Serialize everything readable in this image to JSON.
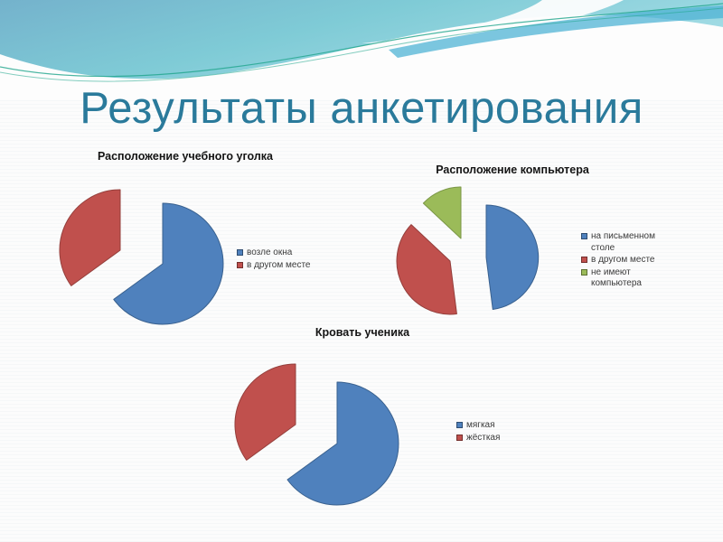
{
  "slide": {
    "title": "Результаты анкетирования",
    "title_color": "#2a7a9b"
  },
  "theme_colors": {
    "blue": "#4f81bd",
    "red": "#c0504d",
    "green": "#9bbb59",
    "swoosh_teal_line": "#1fa58c",
    "header_blue_top": "#74b2cc",
    "header_aqua": "#84d3dc"
  },
  "chart_data": [
    {
      "type": "pie",
      "title": "Расположение учебного уголка",
      "labels": [
        "возле окна",
        "в другом месте"
      ],
      "values": [
        65,
        35
      ],
      "colors": [
        "#4f81bd",
        "#c0504d"
      ],
      "legend_position": "right",
      "exploded": true
    },
    {
      "type": "pie",
      "title": "Расположение компьютера",
      "labels": [
        "на письменном столе",
        "в другом месте",
        "не имеют компьютера"
      ],
      "values": [
        48,
        39,
        13
      ],
      "colors": [
        "#4f81bd",
        "#c0504d",
        "#9bbb59"
      ],
      "legend_position": "right",
      "exploded": true
    },
    {
      "type": "pie",
      "title": "Кровать ученика",
      "labels": [
        "мягкая",
        "жёсткая"
      ],
      "values": [
        65,
        35
      ],
      "colors": [
        "#4f81bd",
        "#c0504d"
      ],
      "legend_position": "right",
      "exploded": true
    }
  ]
}
